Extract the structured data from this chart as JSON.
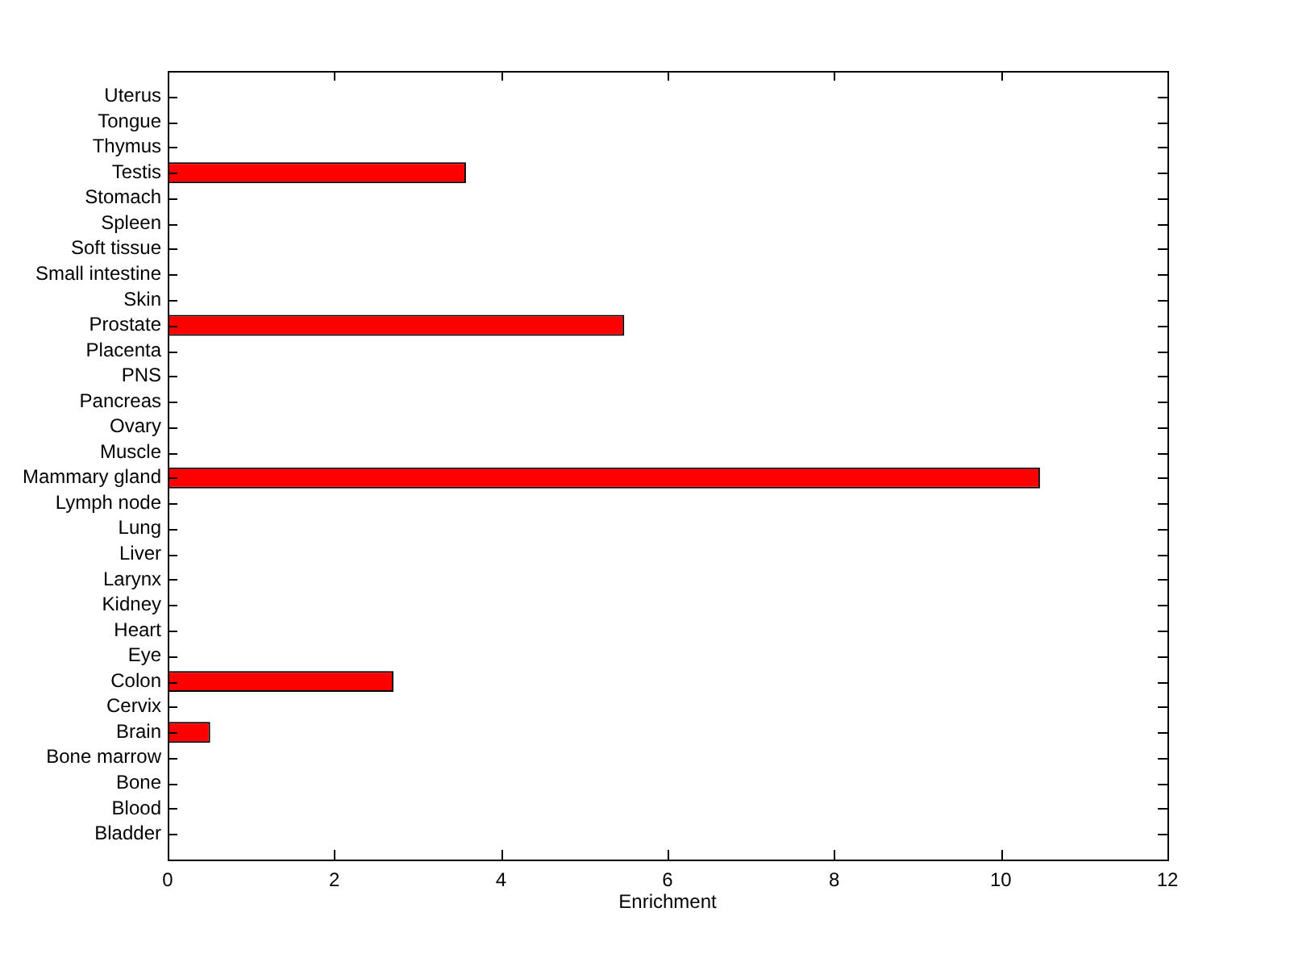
{
  "chart_data": {
    "type": "bar",
    "orientation": "horizontal",
    "xlabel": "Enrichment",
    "categories": [
      "Uterus",
      "Tongue",
      "Thymus",
      "Testis",
      "Stomach",
      "Spleen",
      "Soft tissue",
      "Small intestine",
      "Skin",
      "Prostate",
      "Placenta",
      "PNS",
      "Pancreas",
      "Ovary",
      "Muscle",
      "Mammary gland",
      "Lymph node",
      "Lung",
      "Liver",
      "Larynx",
      "Kidney",
      "Heart",
      "Eye",
      "Colon",
      "Cervix",
      "Brain",
      "Bone marrow",
      "Bone",
      "Blood",
      "Bladder"
    ],
    "values": [
      0,
      0,
      0,
      3.58,
      0,
      0,
      0,
      0,
      0,
      5.48,
      0,
      0,
      0,
      0,
      0,
      10.47,
      0,
      0,
      0,
      0,
      0,
      0,
      0,
      2.71,
      0,
      0.51,
      0,
      0,
      0,
      0
    ],
    "color": "#ff0000",
    "xlim": [
      0,
      12
    ],
    "xticks": [
      0,
      2,
      4,
      6,
      8,
      10,
      12
    ],
    "grid": false,
    "legend": false
  }
}
